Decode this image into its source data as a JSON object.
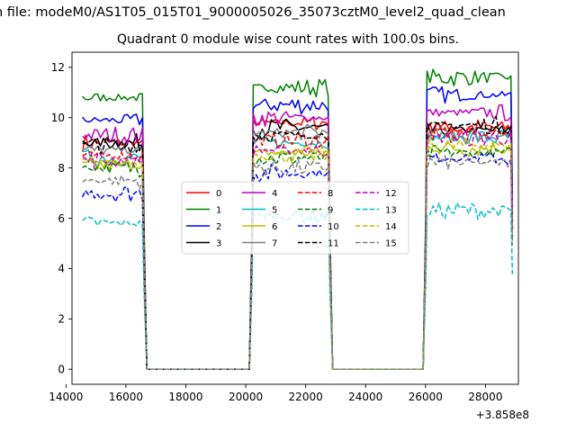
{
  "figure": {
    "suptitle": "n file: modeM0/AS1T05_015T01_9000005026_35073cztM0_level2_quad_clean"
  },
  "chart_data": {
    "type": "line",
    "title": "Quadrant 0 module wise count rates with 100.0s bins.",
    "xlabel": "",
    "ylabel": "",
    "x_offset_label": "+3.858e8",
    "xlim": [
      14200,
      29100
    ],
    "ylim": [
      -0.6,
      12.6
    ],
    "xticks": [
      14000,
      16000,
      18000,
      20000,
      22000,
      24000,
      26000,
      28000
    ],
    "yticks": [
      0,
      2,
      4,
      6,
      8,
      10,
      12
    ],
    "grid": false,
    "legend": {
      "placement": "center",
      "columns": 4
    },
    "segments_x": [
      [
        14550,
        16550
      ],
      [
        20250,
        22750
      ],
      [
        26050,
        28850
      ]
    ],
    "gap_x": [
      [
        16700,
        20120
      ],
      [
        22880,
        25920
      ]
    ],
    "gap_value": 0,
    "series": [
      {
        "name": "0",
        "color": "#ff0000",
        "dash": "solid",
        "levels": [
          9.0,
          9.8,
          9.6
        ]
      },
      {
        "name": "1",
        "color": "#008000",
        "dash": "solid",
        "levels": [
          10.8,
          11.2,
          11.6
        ]
      },
      {
        "name": "2",
        "color": "#0000ff",
        "dash": "solid",
        "levels": [
          9.9,
          10.5,
          10.9
        ]
      },
      {
        "name": "3",
        "color": "#000000",
        "dash": "solid",
        "levels": [
          9.0,
          9.6,
          9.5
        ]
      },
      {
        "name": "4",
        "color": "#bf00bf",
        "dash": "solid",
        "levels": [
          9.3,
          10.0,
          10.2
        ]
      },
      {
        "name": "5",
        "color": "#00bfbf",
        "dash": "solid",
        "levels": [
          8.4,
          9.0,
          9.2
        ]
      },
      {
        "name": "6",
        "color": "#bfbf00",
        "dash": "solid",
        "levels": [
          8.1,
          8.6,
          8.8
        ]
      },
      {
        "name": "7",
        "color": "#808080",
        "dash": "solid",
        "levels": [
          8.7,
          9.4,
          9.3
        ]
      },
      {
        "name": "8",
        "color": "#ff0000",
        "dash": "dashed",
        "levels": [
          8.5,
          9.1,
          9.4
        ]
      },
      {
        "name": "9",
        "color": "#008000",
        "dash": "dashed",
        "levels": [
          8.0,
          8.4,
          8.6
        ]
      },
      {
        "name": "10",
        "color": "#0000ff",
        "dash": "dashed",
        "levels": [
          7.0,
          7.8,
          8.4
        ]
      },
      {
        "name": "11",
        "color": "#000000",
        "dash": "dashed",
        "levels": [
          8.9,
          9.3,
          9.7
        ]
      },
      {
        "name": "12",
        "color": "#bf00bf",
        "dash": "dashed",
        "levels": [
          8.3,
          8.7,
          9.2
        ]
      },
      {
        "name": "13",
        "color": "#00bfbf",
        "dash": "dashed",
        "levels": [
          5.8,
          6.1,
          6.3
        ]
      },
      {
        "name": "14",
        "color": "#bfbf00",
        "dash": "dashed",
        "levels": [
          8.2,
          8.5,
          8.9
        ]
      },
      {
        "name": "15",
        "color": "#808080",
        "dash": "dashed",
        "levels": [
          7.5,
          8.0,
          8.2
        ]
      }
    ]
  }
}
